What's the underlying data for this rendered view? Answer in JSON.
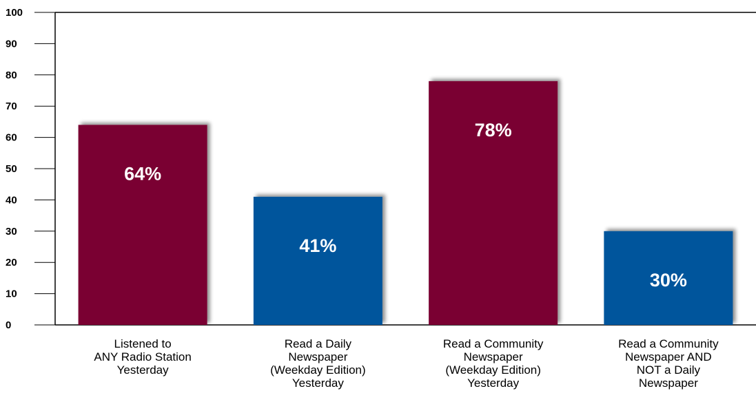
{
  "chart_data": {
    "type": "bar",
    "categories": [
      [
        "Listened to",
        "ANY Radio Station",
        "Yesterday"
      ],
      [
        "Read a Daily",
        "Newspaper",
        "(Weekday Edition)",
        "Yesterday"
      ],
      [
        "Read a Community",
        "Newspaper",
        "(Weekday Edition)",
        "Yesterday"
      ],
      [
        "Read a Community",
        "Newspaper AND",
        "NOT a Daily",
        "Newspaper"
      ]
    ],
    "values": [
      64,
      41,
      78,
      30
    ],
    "value_labels": [
      "64%",
      "41%",
      "78%",
      "30%"
    ],
    "bar_colors": [
      "#7a0033",
      "#00559c",
      "#7a0033",
      "#00559c"
    ],
    "y_ticks": [
      "0",
      "10",
      "20",
      "30",
      "40",
      "50",
      "60",
      "70",
      "80",
      "90",
      "100"
    ],
    "ylim": [
      0,
      100
    ],
    "title": "",
    "xlabel": "",
    "ylabel": "",
    "grid": false,
    "legend": "none"
  }
}
